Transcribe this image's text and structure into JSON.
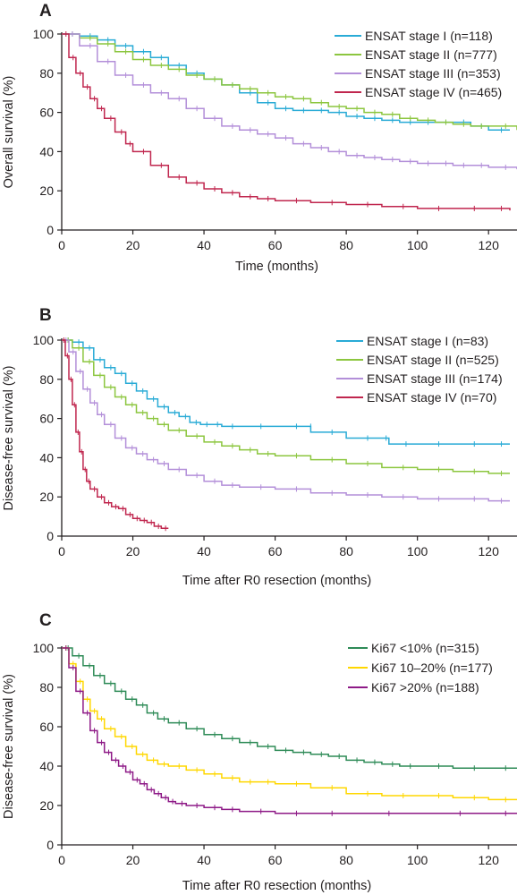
{
  "chart_data": [
    {
      "type": "line",
      "panel_label": "A",
      "xlabel": "Time (months)",
      "ylabel": "Overall survival (%)",
      "xlim": [
        0,
        128
      ],
      "ylim": [
        0,
        100
      ],
      "xticks": [
        "0",
        "20",
        "40",
        "60",
        "80",
        "100",
        "120"
      ],
      "yticks": [
        "0",
        "20",
        "40",
        "60",
        "80",
        "100"
      ],
      "legend_position": "top-right",
      "series": [
        {
          "name": "ENSAT stage I (n=118)",
          "color": "#29abd6",
          "x": [
            0,
            5,
            10,
            15,
            20,
            25,
            30,
            35,
            40,
            45,
            50,
            55,
            60,
            65,
            70,
            75,
            80,
            85,
            90,
            95,
            100,
            105,
            110,
            115,
            120,
            126
          ],
          "y": [
            100,
            99,
            97,
            94,
            91,
            88,
            84,
            80,
            77,
            74,
            70,
            65,
            62,
            61,
            61,
            60,
            58,
            57,
            56,
            55,
            55,
            55,
            55,
            53,
            51,
            51
          ]
        },
        {
          "name": "ENSAT stage II (n=777)",
          "color": "#8cc63f",
          "x": [
            0,
            5,
            10,
            15,
            20,
            25,
            30,
            35,
            40,
            45,
            50,
            55,
            60,
            65,
            70,
            75,
            80,
            85,
            90,
            95,
            100,
            105,
            110,
            115,
            120,
            128
          ],
          "y": [
            100,
            98,
            95,
            91,
            87,
            84,
            82,
            79,
            77,
            74,
            72,
            70,
            68,
            67,
            65,
            63,
            62,
            60,
            59,
            57,
            56,
            55,
            54,
            53,
            53,
            51
          ]
        },
        {
          "name": "ENSAT stage III (n=353)",
          "color": "#b38fd9",
          "x": [
            0,
            5,
            10,
            15,
            20,
            25,
            30,
            35,
            40,
            45,
            50,
            55,
            60,
            65,
            70,
            75,
            80,
            85,
            90,
            95,
            100,
            105,
            110,
            115,
            120,
            128
          ],
          "y": [
            100,
            94,
            86,
            79,
            74,
            70,
            67,
            62,
            57,
            53,
            51,
            49,
            47,
            44,
            42,
            40,
            38,
            37,
            36,
            35,
            34,
            34,
            33,
            33,
            32,
            31
          ]
        },
        {
          "name": "ENSAT stage IV (n=465)",
          "color": "#c0264e",
          "x": [
            0,
            2,
            4,
            6,
            8,
            10,
            12,
            15,
            18,
            20,
            25,
            30,
            35,
            40,
            45,
            50,
            55,
            60,
            70,
            80,
            90,
            100,
            110,
            120,
            126
          ],
          "y": [
            100,
            88,
            80,
            73,
            67,
            62,
            57,
            50,
            44,
            40,
            33,
            27,
            24,
            21,
            19,
            17,
            16,
            15,
            14,
            13,
            12,
            11,
            11,
            11,
            10
          ]
        }
      ]
    },
    {
      "type": "line",
      "panel_label": "B",
      "xlabel": "Time after R0 resection (months)",
      "ylabel": "Disease-free survival (%)",
      "xlim": [
        0,
        128
      ],
      "ylim": [
        0,
        100
      ],
      "xticks": [
        "0",
        "20",
        "40",
        "60",
        "80",
        "100",
        "120"
      ],
      "yticks": [
        "0",
        "20",
        "40",
        "60",
        "80",
        "100"
      ],
      "legend_position": "top-right",
      "series": [
        {
          "name": "ENSAT stage I (n=83)",
          "color": "#29abd6",
          "x": [
            0,
            3,
            6,
            9,
            12,
            15,
            18,
            21,
            24,
            27,
            30,
            33,
            36,
            39,
            42,
            45,
            50,
            60,
            70,
            70,
            80,
            90,
            92,
            100,
            110,
            120,
            126
          ],
          "y": [
            100,
            99,
            96,
            90,
            86,
            83,
            78,
            74,
            70,
            66,
            63,
            61,
            58,
            57,
            57,
            56,
            56,
            56,
            56,
            53,
            50,
            50,
            47,
            47,
            47,
            47,
            47
          ]
        },
        {
          "name": "ENSAT stage II (n=525)",
          "color": "#8cc63f",
          "x": [
            0,
            3,
            6,
            9,
            12,
            15,
            18,
            21,
            24,
            27,
            30,
            35,
            40,
            45,
            50,
            55,
            60,
            70,
            80,
            90,
            100,
            110,
            120,
            126
          ],
          "y": [
            100,
            96,
            89,
            82,
            76,
            71,
            67,
            63,
            60,
            57,
            54,
            51,
            48,
            46,
            44,
            42,
            41,
            39,
            37,
            35,
            34,
            33,
            32,
            32
          ]
        },
        {
          "name": "ENSAT stage III (n=174)",
          "color": "#b38fd9",
          "x": [
            0,
            2,
            4,
            6,
            8,
            10,
            12,
            15,
            18,
            21,
            24,
            27,
            30,
            35,
            40,
            45,
            50,
            60,
            70,
            80,
            90,
            100,
            110,
            120,
            126
          ],
          "y": [
            100,
            94,
            84,
            75,
            68,
            62,
            57,
            50,
            45,
            42,
            39,
            37,
            34,
            31,
            28,
            26,
            25,
            24,
            22,
            21,
            20,
            19,
            19,
            18,
            18
          ]
        },
        {
          "name": "ENSAT stage IV (n=70)",
          "color": "#c0264e",
          "x": [
            0,
            1,
            2,
            3,
            4,
            5,
            6,
            7,
            8,
            10,
            12,
            14,
            16,
            18,
            20,
            22,
            24,
            26,
            28,
            30
          ],
          "y": [
            100,
            92,
            80,
            67,
            53,
            43,
            34,
            28,
            24,
            20,
            17,
            15,
            14,
            11,
            9,
            8,
            7,
            5,
            4,
            4
          ]
        }
      ]
    },
    {
      "type": "line",
      "panel_label": "C",
      "xlabel": "Time after R0 resection (months)",
      "ylabel": "Disease-free survival (%)",
      "xlim": [
        0,
        128
      ],
      "ylim": [
        0,
        100
      ],
      "xticks": [
        "0",
        "20",
        "40",
        "60",
        "80",
        "100",
        "120"
      ],
      "yticks": [
        "0",
        "20",
        "40",
        "60",
        "80",
        "100"
      ],
      "legend_position": "top-right",
      "series": [
        {
          "name": "Ki67 <10% (n=315)",
          "color": "#2e8b57",
          "x": [
            0,
            3,
            6,
            9,
            12,
            15,
            18,
            21,
            24,
            27,
            30,
            35,
            40,
            45,
            50,
            55,
            60,
            65,
            70,
            75,
            80,
            85,
            90,
            95,
            100,
            110,
            120,
            128
          ],
          "y": [
            100,
            96,
            91,
            86,
            82,
            78,
            74,
            71,
            67,
            64,
            62,
            59,
            56,
            54,
            52,
            50,
            48,
            47,
            46,
            45,
            43,
            42,
            41,
            40,
            40,
            39,
            39,
            39
          ]
        },
        {
          "name": "Ki67 10–20% (n=177)",
          "color": "#ffd700",
          "x": [
            0,
            2,
            4,
            6,
            8,
            10,
            12,
            15,
            18,
            21,
            24,
            27,
            30,
            35,
            40,
            45,
            50,
            55,
            60,
            70,
            80,
            90,
            100,
            110,
            120,
            128
          ],
          "y": [
            100,
            92,
            83,
            74,
            68,
            64,
            59,
            55,
            50,
            46,
            43,
            41,
            40,
            38,
            36,
            34,
            32,
            32,
            31,
            29,
            26,
            25,
            25,
            24,
            23,
            23
          ]
        },
        {
          "name": "Ki67 >20% (n=188)",
          "color": "#8e1a87",
          "x": [
            0,
            2,
            4,
            6,
            8,
            10,
            12,
            14,
            16,
            18,
            20,
            22,
            24,
            26,
            28,
            30,
            32,
            35,
            40,
            45,
            50,
            60,
            70,
            80,
            100,
            120,
            128
          ],
          "y": [
            100,
            90,
            78,
            67,
            58,
            52,
            47,
            43,
            40,
            37,
            33,
            31,
            28,
            26,
            24,
            22,
            21,
            20,
            19,
            18,
            17,
            16,
            16,
            16,
            16,
            16,
            16
          ]
        }
      ]
    }
  ]
}
